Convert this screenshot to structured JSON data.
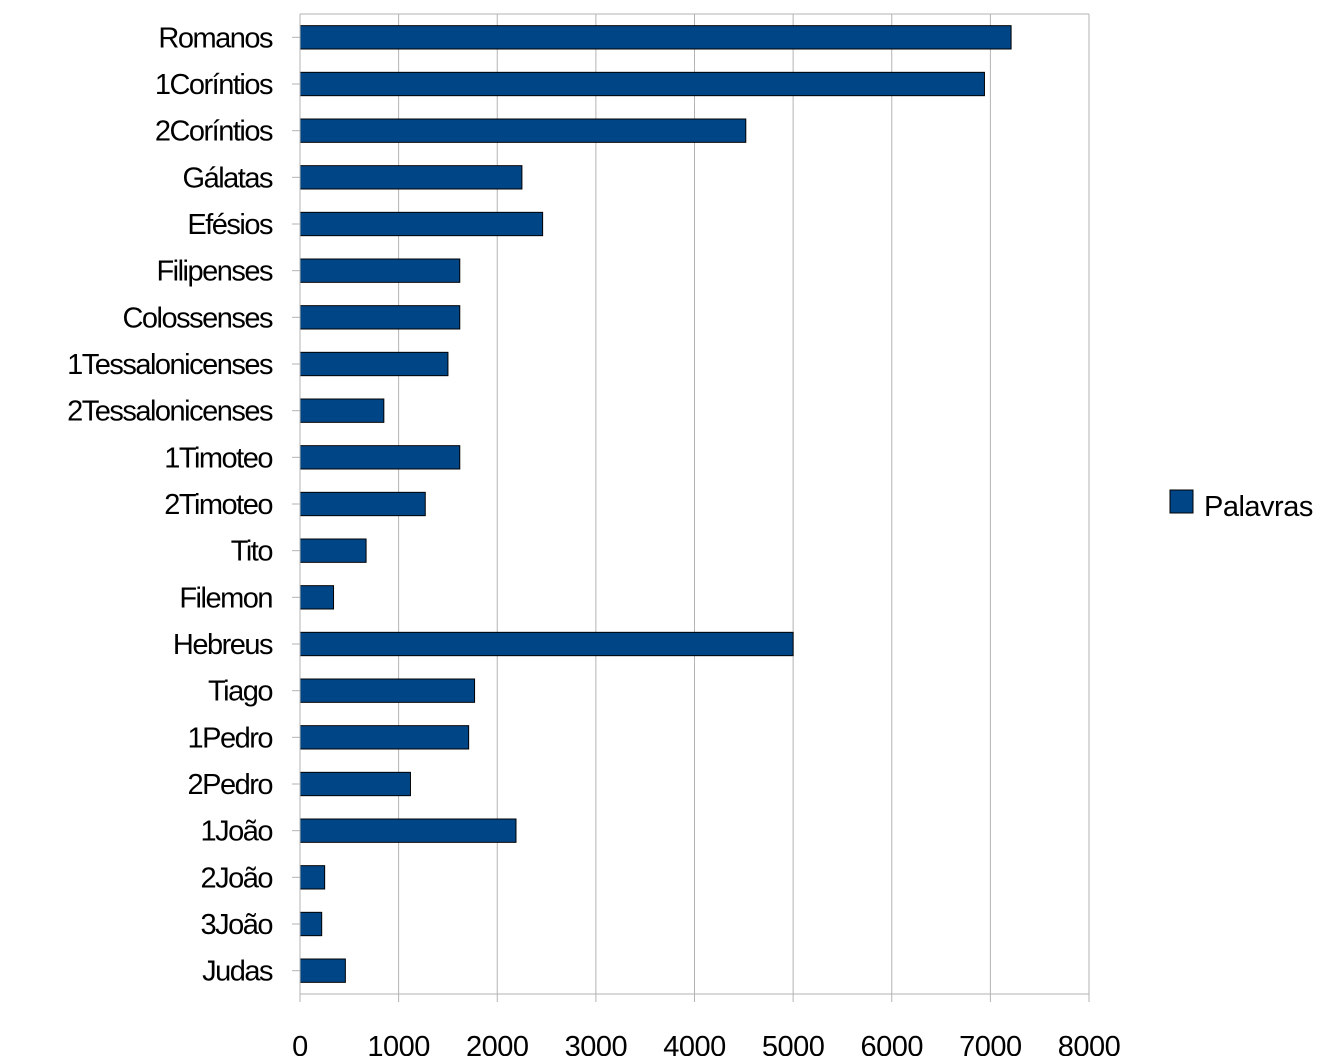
{
  "chart_data": {
    "type": "bar",
    "orientation": "horizontal",
    "categories": [
      "Romanos",
      "1Coríntios",
      "2Coríntios",
      "Gálatas",
      "Efésios",
      "Filipenses",
      "Colossenses",
      "1Tessalonicenses",
      "2Tessalonicenses",
      "1Timoteo",
      "2Timoteo",
      "Tito",
      "Filemon",
      "Hebreus",
      "Tiago",
      "1Pedro",
      "2Pedro",
      "1João",
      "2João",
      "3João",
      "Judas"
    ],
    "series": [
      {
        "name": "Palavras",
        "color": "#004586",
        "values": [
          7210,
          6940,
          4520,
          2250,
          2460,
          1620,
          1620,
          1500,
          850,
          1620,
          1270,
          670,
          340,
          5000,
          1770,
          1710,
          1120,
          2190,
          250,
          220,
          460
        ]
      }
    ],
    "title": "",
    "xlabel": "",
    "ylabel": "",
    "xlim": [
      0,
      8000
    ],
    "xticks": [
      "0",
      "1000",
      "2000",
      "3000",
      "4000",
      "5000",
      "6000",
      "7000",
      "8000"
    ],
    "grid": "vertical",
    "legend_position": "right"
  }
}
